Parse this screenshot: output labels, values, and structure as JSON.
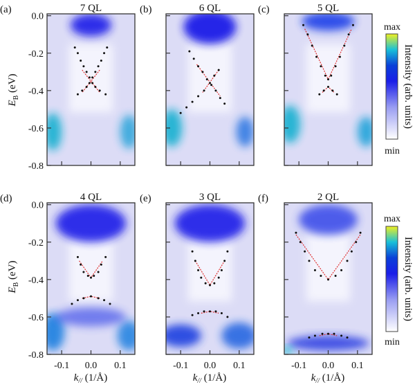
{
  "chart_data": {
    "type": "heatmap",
    "ylabel_main": "E",
    "ylabel_sub": "B",
    "ylabel_unit": " (eV)",
    "xlabel_main": "k",
    "xlabel_sub": "//",
    "xlabel_unit": " (1/Å)",
    "xlim": [
      -0.15,
      0.15
    ],
    "ylim": [
      0.01,
      -0.8
    ],
    "xticks": [
      "-0.1",
      "0.0",
      "0.1"
    ],
    "xtick_values": [
      -0.1,
      0.0,
      0.1
    ],
    "yticks": [
      "0.0",
      "-0.2",
      "-0.4",
      "-0.6",
      "-0.8"
    ],
    "ytick_values": [
      0.0,
      -0.2,
      -0.4,
      -0.6,
      -0.8
    ],
    "colorbar": {
      "label": "Intensity (arb. units)",
      "max_label": "max",
      "min_label": "min",
      "colors": [
        "#ffffff",
        "#8a8ff0",
        "#1a1ee8",
        "#0a3cd8",
        "#19c0d8",
        "#f0f020"
      ]
    },
    "fit_color": "#e03030",
    "dot_color": "#111111",
    "panels": [
      {
        "label": "(a)",
        "title": "7 QL",
        "dirac_point": -0.35,
        "branches": [
          [
            [
              -0.055,
              -0.17
            ],
            [
              -0.045,
              -0.2
            ],
            [
              -0.035,
              -0.24
            ],
            [
              -0.025,
              -0.27
            ],
            [
              -0.015,
              -0.3
            ],
            [
              -0.005,
              -0.33
            ],
            [
              0.005,
              -0.36
            ],
            [
              0.015,
              -0.38
            ],
            [
              0.03,
              -0.4
            ],
            [
              0.05,
              -0.42
            ]
          ],
          [
            [
              0.055,
              -0.17
            ],
            [
              0.045,
              -0.2
            ],
            [
              0.035,
              -0.24
            ],
            [
              0.025,
              -0.27
            ],
            [
              0.015,
              -0.3
            ],
            [
              0.005,
              -0.33
            ],
            [
              -0.005,
              -0.36
            ],
            [
              -0.015,
              -0.38
            ],
            [
              -0.03,
              -0.4
            ],
            [
              -0.045,
              -0.42
            ]
          ]
        ],
        "fits": [
          [
            [
              -0.03,
              -0.29
            ],
            [
              0.03,
              -0.41
            ]
          ],
          [
            [
              0.03,
              -0.29
            ],
            [
              -0.03,
              -0.41
            ]
          ]
        ]
      },
      {
        "label": "(b)",
        "title": "6 QL",
        "dirac_point": -0.36,
        "branches": [
          [
            [
              -0.07,
              -0.19
            ],
            [
              -0.055,
              -0.23
            ],
            [
              -0.04,
              -0.27
            ],
            [
              -0.025,
              -0.3
            ],
            [
              -0.01,
              -0.34
            ],
            [
              0.005,
              -0.37
            ],
            [
              0.02,
              -0.4
            ],
            [
              0.035,
              -0.44
            ],
            [
              0.05,
              -0.47
            ]
          ],
          [
            [
              0.03,
              -0.29
            ],
            [
              0.015,
              -0.32
            ],
            [
              0.0,
              -0.36
            ],
            [
              -0.02,
              -0.4
            ],
            [
              -0.04,
              -0.43
            ],
            [
              -0.06,
              -0.46
            ],
            [
              -0.08,
              -0.49
            ],
            [
              -0.1,
              -0.52
            ]
          ]
        ],
        "fits": [
          [
            [
              -0.045,
              -0.26
            ],
            [
              0.035,
              -0.43
            ]
          ],
          [
            [
              0.03,
              -0.29
            ],
            [
              -0.025,
              -0.41
            ]
          ]
        ]
      },
      {
        "label": "(c)",
        "title": "5 QL",
        "dirac_point": null,
        "branches": [
          [
            [
              -0.085,
              -0.05
            ],
            [
              -0.07,
              -0.1
            ],
            [
              -0.055,
              -0.16
            ],
            [
              -0.04,
              -0.22
            ],
            [
              -0.025,
              -0.27
            ],
            [
              -0.01,
              -0.32
            ],
            [
              0.0,
              -0.34
            ],
            [
              0.01,
              -0.32
            ],
            [
              0.025,
              -0.27
            ],
            [
              0.04,
              -0.22
            ],
            [
              0.055,
              -0.16
            ],
            [
              0.07,
              -0.1
            ],
            [
              0.085,
              -0.05
            ]
          ],
          [
            [
              -0.03,
              -0.42
            ],
            [
              -0.015,
              -0.4
            ],
            [
              0.0,
              -0.38
            ],
            [
              0.015,
              -0.4
            ],
            [
              0.03,
              -0.42
            ]
          ]
        ],
        "fits": [
          [
            [
              -0.08,
              -0.07
            ],
            [
              0.0,
              -0.34
            ],
            [
              0.08,
              -0.07
            ]
          ],
          [
            [
              -0.02,
              -0.41
            ],
            [
              0.0,
              -0.38
            ],
            [
              0.02,
              -0.41
            ]
          ]
        ]
      },
      {
        "label": "(d)",
        "title": "4 QL",
        "dirac_point": null,
        "branches": [
          [
            [
              -0.045,
              -0.28
            ],
            [
              -0.035,
              -0.32
            ],
            [
              -0.025,
              -0.36
            ],
            [
              -0.01,
              -0.38
            ],
            [
              0.0,
              -0.39
            ],
            [
              0.01,
              -0.38
            ],
            [
              0.025,
              -0.36
            ],
            [
              0.035,
              -0.32
            ],
            [
              0.05,
              -0.28
            ]
          ],
          [
            [
              -0.065,
              -0.53
            ],
            [
              -0.045,
              -0.51
            ],
            [
              -0.025,
              -0.5
            ],
            [
              0.0,
              -0.49
            ],
            [
              0.025,
              -0.5
            ],
            [
              0.045,
              -0.51
            ],
            [
              0.065,
              -0.53
            ]
          ]
        ],
        "fits": [
          [
            [
              -0.04,
              -0.3
            ],
            [
              0.0,
              -0.39
            ],
            [
              0.04,
              -0.3
            ]
          ],
          [
            [
              -0.03,
              -0.5
            ],
            [
              0.0,
              -0.49
            ],
            [
              0.03,
              -0.5
            ]
          ]
        ]
      },
      {
        "label": "(e)",
        "title": "3 QL",
        "dirac_point": null,
        "branches": [
          [
            [
              -0.06,
              -0.25
            ],
            [
              -0.05,
              -0.3
            ],
            [
              -0.04,
              -0.35
            ],
            [
              -0.03,
              -0.39
            ],
            [
              -0.015,
              -0.42
            ],
            [
              0.0,
              -0.43
            ],
            [
              0.015,
              -0.42
            ],
            [
              0.03,
              -0.39
            ],
            [
              0.04,
              -0.35
            ],
            [
              0.05,
              -0.3
            ],
            [
              0.06,
              -0.25
            ]
          ],
          [
            [
              -0.06,
              -0.59
            ],
            [
              -0.04,
              -0.58
            ],
            [
              -0.02,
              -0.57
            ],
            [
              0.0,
              -0.57
            ],
            [
              0.02,
              -0.57
            ],
            [
              0.04,
              -0.58
            ],
            [
              0.06,
              -0.6
            ]
          ]
        ],
        "fits": [
          [
            [
              -0.05,
              -0.3
            ],
            [
              0.0,
              -0.43
            ],
            [
              0.05,
              -0.3
            ]
          ],
          [
            [
              -0.03,
              -0.58
            ],
            [
              0.0,
              -0.57
            ],
            [
              0.03,
              -0.58
            ]
          ]
        ]
      },
      {
        "label": "(f)",
        "title": "2 QL",
        "dirac_point": null,
        "branches": [
          [
            [
              -0.11,
              -0.15
            ],
            [
              -0.095,
              -0.2
            ],
            [
              -0.08,
              -0.25
            ],
            [
              -0.065,
              -0.3
            ],
            [
              -0.045,
              -0.35
            ],
            [
              -0.025,
              -0.38
            ],
            [
              0.0,
              -0.4
            ],
            [
              0.025,
              -0.38
            ],
            [
              0.045,
              -0.35
            ],
            [
              0.065,
              -0.3
            ],
            [
              0.08,
              -0.25
            ],
            [
              0.095,
              -0.2
            ],
            [
              0.11,
              -0.15
            ]
          ],
          [
            [
              -0.065,
              -0.71
            ],
            [
              -0.045,
              -0.7
            ],
            [
              -0.02,
              -0.69
            ],
            [
              0.0,
              -0.69
            ],
            [
              0.02,
              -0.69
            ],
            [
              0.045,
              -0.7
            ],
            [
              0.065,
              -0.71
            ]
          ]
        ],
        "fits": [
          [
            [
              -0.11,
              -0.16
            ],
            [
              0.0,
              -0.4
            ],
            [
              0.11,
              -0.16
            ]
          ],
          [
            [
              -0.03,
              -0.7
            ],
            [
              0.0,
              -0.69
            ],
            [
              0.03,
              -0.7
            ]
          ]
        ]
      }
    ]
  }
}
